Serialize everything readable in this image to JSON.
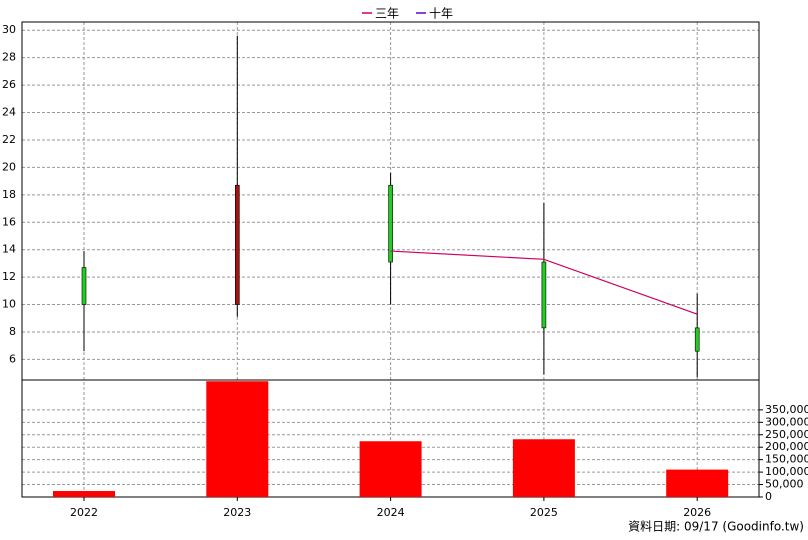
{
  "chart_data": {
    "type": "candlestick",
    "categories": [
      "2022",
      "2023",
      "2024",
      "2025",
      "2026"
    ],
    "open": [
      12.7,
      10,
      18.7,
      13.1,
      8.3
    ],
    "high": [
      13.9,
      29.6,
      19.6,
      17.4,
      10.8
    ],
    "low": [
      6.6,
      9.1,
      10,
      4.9,
      4.7
    ],
    "close": [
      10,
      18.7,
      13.1,
      8.3,
      6.6
    ],
    "up_color": "#aa1111",
    "down_color": "#22cc22",
    "series": [
      {
        "name": "三年",
        "color": "#cc0066",
        "values": [
          null,
          null,
          13.9,
          13.3,
          9.3
        ]
      },
      {
        "name": "十年",
        "color": "#6600cc",
        "values": [
          null,
          null,
          null,
          null,
          null
        ]
      }
    ],
    "ylim": [
      4.5,
      30.6
    ],
    "yticks": [
      6,
      8,
      10,
      12,
      14,
      16,
      18,
      20,
      22,
      24,
      26,
      28,
      30
    ],
    "grid": true,
    "legend": "top",
    "volume": {
      "color": "#ff0000",
      "values": [
        24000,
        465000,
        224000,
        232000,
        110000
      ],
      "ylim": [
        0,
        470000
      ],
      "yticks": [
        0,
        {
          "value": 50000,
          "label": "50,000"
        },
        {
          "value": 100000,
          "label": "100,000"
        },
        {
          "value": 150000,
          "label": "150,000"
        },
        {
          "value": 200000,
          "label": "200,000"
        },
        {
          "value": 250000,
          "label": "250,000"
        },
        {
          "value": 300000,
          "label": "300,000"
        },
        {
          "value": 350000,
          "label": "350,000"
        }
      ]
    },
    "source": "資料日期: 09/17  (Goodinfo.tw)"
  }
}
